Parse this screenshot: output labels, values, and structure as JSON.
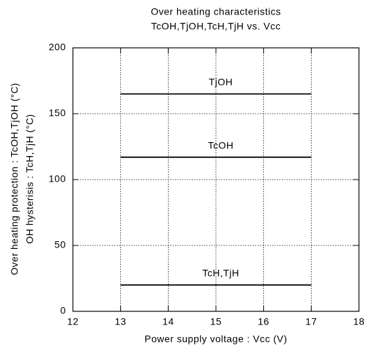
{
  "chart_data": {
    "type": "line",
    "title": [
      "Over heating characteristics",
      "TcOH,TjOH,TcH,TjH vs. Vcc"
    ],
    "x_label": "Power supply voltage : Vcc (V)",
    "y_label": [
      "Over heating protection : TcOH,TjOH (°C)",
      "OH hysterisis : TcH,TjH (°C)"
    ],
    "x": [
      13,
      17
    ],
    "series": [
      {
        "name": "TjOH",
        "color": "#000000",
        "values": [
          165,
          165
        ]
      },
      {
        "name": "TcOH",
        "color": "#000000",
        "values": [
          117,
          117
        ]
      },
      {
        "name": "TcH,TjH",
        "color": "#000000",
        "values": [
          20,
          20
        ]
      }
    ],
    "xlim": [
      12,
      18
    ],
    "xticks": [
      12,
      13,
      14,
      15,
      16,
      17,
      18
    ],
    "ylim": [
      0,
      200
    ],
    "yticks": [
      0,
      50,
      100,
      150,
      200
    ],
    "grid": true
  }
}
